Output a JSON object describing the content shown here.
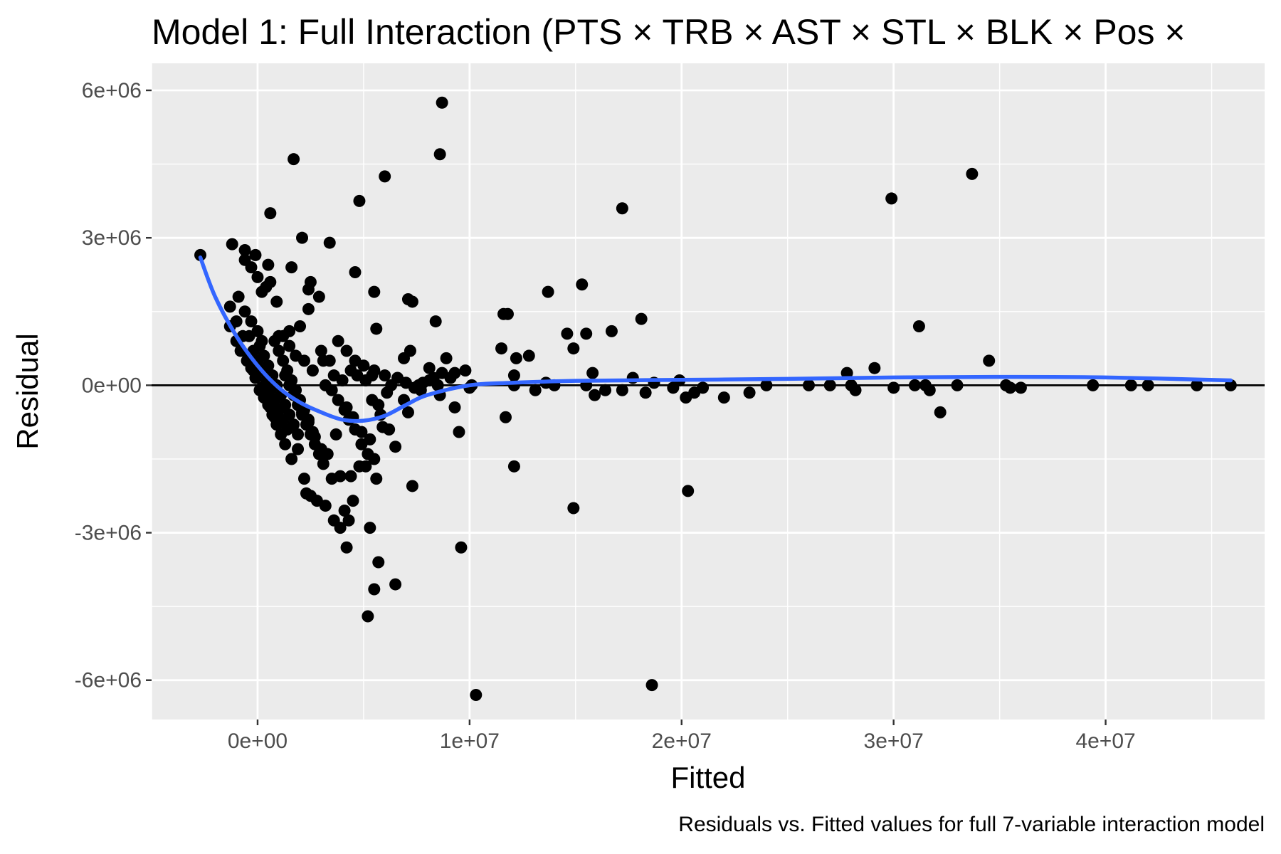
{
  "chart_data": {
    "type": "scatter",
    "title": "Model 1: Full Interaction (PTS × TRB × AST × STL × BLK × Pos × ",
    "caption": "Residuals vs. Fitted values for full 7-variable interaction model",
    "xlabel": "Fitted",
    "ylabel": "Residual",
    "xlim": [
      -5000000,
      47500000
    ],
    "ylim": [
      -6800000,
      6550000
    ],
    "x_ticks": [
      0,
      10000000,
      20000000,
      30000000,
      40000000
    ],
    "x_tick_labels": [
      "0e+00",
      "1e+07",
      "2e+07",
      "3e+07",
      "4e+07"
    ],
    "y_ticks": [
      -6000000,
      -3000000,
      0,
      3000000,
      6000000
    ],
    "y_tick_labels": [
      "-6e+06",
      "-3e+06",
      "0e+00",
      "3e+06",
      "6e+06"
    ],
    "grid": true,
    "reference_line_y": 0,
    "colors": {
      "panel": "#ebebeb",
      "grid": "#ffffff",
      "points": "#000000",
      "smooth": "#3366ff",
      "reference": "#000000"
    },
    "points": [
      [
        -2700000,
        2650000
      ],
      [
        -1200000,
        2870000
      ],
      [
        -600000,
        2750000
      ],
      [
        -100000,
        2650000
      ],
      [
        500000,
        2450000
      ],
      [
        1600000,
        2400000
      ],
      [
        2100000,
        3000000
      ],
      [
        3400000,
        2900000
      ],
      [
        2400000,
        1950000
      ],
      [
        2400000,
        1550000
      ],
      [
        2900000,
        1800000
      ],
      [
        2500000,
        2100000
      ],
      [
        600000,
        3500000
      ],
      [
        1700000,
        4600000
      ],
      [
        4800000,
        3750000
      ],
      [
        6000000,
        4250000
      ],
      [
        8600000,
        4700000
      ],
      [
        8700000,
        5750000
      ],
      [
        17200000,
        3600000
      ],
      [
        29900000,
        3800000
      ],
      [
        33700000,
        4300000
      ],
      [
        4600000,
        2300000
      ],
      [
        5500000,
        1900000
      ],
      [
        5600000,
        1150000
      ],
      [
        7100000,
        1750000
      ],
      [
        7300000,
        1700000
      ],
      [
        8400000,
        1300000
      ],
      [
        13700000,
        1900000
      ],
      [
        15300000,
        2050000
      ],
      [
        11600000,
        1450000
      ],
      [
        11800000,
        1450000
      ],
      [
        16700000,
        1100000
      ],
      [
        18100000,
        1350000
      ],
      [
        14600000,
        1050000
      ],
      [
        15500000,
        1050000
      ],
      [
        31200000,
        1200000
      ],
      [
        11500000,
        750000
      ],
      [
        12200000,
        550000
      ],
      [
        12800000,
        600000
      ],
      [
        14900000,
        750000
      ],
      [
        34500000,
        500000
      ],
      [
        29100000,
        350000
      ],
      [
        27800000,
        250000
      ],
      [
        15800000,
        250000
      ],
      [
        12100000,
        200000
      ],
      [
        12100000,
        0
      ],
      [
        13100000,
        -100000
      ],
      [
        13600000,
        50000
      ],
      [
        14000000,
        0
      ],
      [
        15500000,
        0
      ],
      [
        15900000,
        -200000
      ],
      [
        16400000,
        -100000
      ],
      [
        17200000,
        -100000
      ],
      [
        17700000,
        150000
      ],
      [
        18300000,
        -150000
      ],
      [
        18700000,
        50000
      ],
      [
        19600000,
        -50000
      ],
      [
        19900000,
        100000
      ],
      [
        20200000,
        -250000
      ],
      [
        20600000,
        -150000
      ],
      [
        21000000,
        -50000
      ],
      [
        22000000,
        -250000
      ],
      [
        23200000,
        -150000
      ],
      [
        24000000,
        0
      ],
      [
        26000000,
        0
      ],
      [
        27000000,
        0
      ],
      [
        28000000,
        0
      ],
      [
        28200000,
        -100000
      ],
      [
        30000000,
        -50000
      ],
      [
        31000000,
        0
      ],
      [
        31500000,
        0
      ],
      [
        31700000,
        -100000
      ],
      [
        32200000,
        -550000
      ],
      [
        33000000,
        0
      ],
      [
        35300000,
        0
      ],
      [
        35500000,
        -50000
      ],
      [
        36000000,
        -50000
      ],
      [
        39400000,
        0
      ],
      [
        41200000,
        0
      ],
      [
        42000000,
        0
      ],
      [
        44300000,
        0
      ],
      [
        45900000,
        0
      ],
      [
        11700000,
        -650000
      ],
      [
        12100000,
        -1650000
      ],
      [
        14900000,
        -2500000
      ],
      [
        20300000,
        -2150000
      ],
      [
        18600000,
        -6100000
      ],
      [
        10300000,
        -6300000
      ],
      [
        9600000,
        -3300000
      ],
      [
        9500000,
        -950000
      ],
      [
        9300000,
        -450000
      ],
      [
        7300000,
        -2050000
      ],
      [
        6500000,
        -1250000
      ],
      [
        6500000,
        -4050000
      ],
      [
        5500000,
        -4150000
      ],
      [
        5200000,
        -4700000
      ],
      [
        5700000,
        -3600000
      ],
      [
        5300000,
        -2900000
      ],
      [
        4200000,
        -3300000
      ],
      [
        3900000,
        -2900000
      ],
      [
        4300000,
        -2750000
      ],
      [
        4500000,
        -2350000
      ],
      [
        4100000,
        -2550000
      ],
      [
        3600000,
        -2750000
      ],
      [
        3200000,
        -2450000
      ],
      [
        2800000,
        -2350000
      ],
      [
        2500000,
        -2250000
      ],
      [
        2300000,
        -2200000
      ],
      [
        2200000,
        -1900000
      ],
      [
        3500000,
        -1900000
      ],
      [
        3900000,
        -1850000
      ],
      [
        4400000,
        -1850000
      ],
      [
        4800000,
        -1650000
      ],
      [
        5100000,
        -1650000
      ],
      [
        5600000,
        -1900000
      ],
      [
        5500000,
        -1500000
      ],
      [
        5900000,
        -850000
      ],
      [
        5700000,
        -400000
      ],
      [
        6100000,
        -150000
      ],
      [
        5300000,
        -1100000
      ],
      [
        4900000,
        -950000
      ],
      [
        4500000,
        -650000
      ],
      [
        4200000,
        -450000
      ],
      [
        3700000,
        -1000000
      ],
      [
        3300000,
        -1400000
      ],
      [
        3000000,
        -1300000
      ],
      [
        2700000,
        -1050000
      ],
      [
        2400000,
        -700000
      ],
      [
        2100000,
        -550000
      ],
      [
        1900000,
        -1300000
      ],
      [
        1600000,
        -1500000
      ],
      [
        1300000,
        -1200000
      ],
      [
        1100000,
        -1000000
      ],
      [
        900000,
        -800000
      ],
      [
        700000,
        -600000
      ],
      [
        500000,
        -400000
      ],
      [
        300000,
        -250000
      ],
      [
        100000,
        -100000
      ],
      [
        -200000,
        300000
      ],
      [
        -400000,
        600000
      ],
      [
        -700000,
        1000000
      ],
      [
        -1000000,
        1300000
      ],
      [
        -1300000,
        1600000
      ],
      [
        -900000,
        1800000
      ],
      [
        -600000,
        2550000
      ],
      [
        -300000,
        2400000
      ],
      [
        0,
        2200000
      ],
      [
        200000,
        1900000
      ],
      [
        400000,
        2000000
      ],
      [
        600000,
        2100000
      ],
      [
        900000,
        1700000
      ],
      [
        1200000,
        1000000
      ],
      [
        1500000,
        800000
      ],
      [
        1800000,
        600000
      ],
      [
        2200000,
        500000
      ],
      [
        2600000,
        300000
      ],
      [
        3100000,
        500000
      ],
      [
        3600000,
        200000
      ],
      [
        4000000,
        100000
      ],
      [
        4400000,
        300000
      ],
      [
        4700000,
        200000
      ],
      [
        5100000,
        100000
      ],
      [
        5500000,
        300000
      ],
      [
        6000000,
        200000
      ],
      [
        6300000,
        0
      ],
      [
        6900000,
        550000
      ],
      [
        7200000,
        700000
      ],
      [
        7600000,
        0
      ],
      [
        8100000,
        350000
      ],
      [
        8500000,
        0
      ],
      [
        8900000,
        550000
      ],
      [
        9300000,
        250000
      ],
      [
        9800000,
        300000
      ],
      [
        10100000,
        0
      ],
      [
        10000000,
        -50000
      ],
      [
        8600000,
        -200000
      ],
      [
        8100000,
        100000
      ],
      [
        7700000,
        -100000
      ],
      [
        7100000,
        -550000
      ],
      [
        6900000,
        -300000
      ],
      [
        -400000,
        1000000
      ],
      [
        -200000,
        700000
      ],
      [
        0,
        500000
      ],
      [
        200000,
        300000
      ],
      [
        400000,
        100000
      ],
      [
        600000,
        -100000
      ],
      [
        800000,
        -300000
      ],
      [
        1000000,
        -500000
      ],
      [
        1200000,
        -700000
      ],
      [
        1400000,
        -900000
      ],
      [
        100000,
        800000
      ],
      [
        300000,
        600000
      ],
      [
        500000,
        400000
      ],
      [
        700000,
        200000
      ],
      [
        900000,
        0
      ],
      [
        1100000,
        -200000
      ],
      [
        1300000,
        -400000
      ],
      [
        1500000,
        -600000
      ],
      [
        1700000,
        -800000
      ],
      [
        1900000,
        -1000000
      ],
      [
        800000,
        900000
      ],
      [
        1000000,
        700000
      ],
      [
        1200000,
        500000
      ],
      [
        1400000,
        300000
      ],
      [
        1600000,
        100000
      ],
      [
        1800000,
        -100000
      ],
      [
        2000000,
        -300000
      ],
      [
        2200000,
        -500000
      ],
      [
        2400000,
        -750000
      ],
      [
        2600000,
        -950000
      ],
      [
        1300000,
        200000
      ],
      [
        1500000,
        0
      ],
      [
        1700000,
        -200000
      ],
      [
        1900000,
        -400000
      ],
      [
        2100000,
        -600000
      ],
      [
        2300000,
        -800000
      ],
      [
        2500000,
        -1000000
      ],
      [
        2700000,
        -1200000
      ],
      [
        2900000,
        -1400000
      ],
      [
        3100000,
        -1600000
      ],
      [
        3200000,
        0
      ],
      [
        3500000,
        -100000
      ],
      [
        3800000,
        -300000
      ],
      [
        4100000,
        -500000
      ],
      [
        4300000,
        -700000
      ],
      [
        4600000,
        -900000
      ],
      [
        4900000,
        -1200000
      ],
      [
        5200000,
        -1400000
      ],
      [
        5400000,
        -300000
      ],
      [
        5800000,
        -600000
      ],
      [
        6200000,
        -900000
      ],
      [
        6600000,
        150000
      ],
      [
        7000000,
        50000
      ],
      [
        7400000,
        -50000
      ],
      [
        7800000,
        50000
      ],
      [
        8300000,
        150000
      ],
      [
        8700000,
        250000
      ],
      [
        9100000,
        150000
      ],
      [
        3000000,
        700000
      ],
      [
        3400000,
        500000
      ],
      [
        3800000,
        900000
      ],
      [
        4200000,
        700000
      ],
      [
        4600000,
        500000
      ],
      [
        5000000,
        400000
      ],
      [
        5400000,
        200000
      ],
      [
        -1300000,
        1200000
      ],
      [
        -1000000,
        900000
      ],
      [
        -800000,
        700000
      ],
      [
        -500000,
        500000
      ],
      [
        -300000,
        350000
      ],
      [
        -100000,
        150000
      ],
      [
        200000,
        -50000
      ],
      [
        400000,
        -250000
      ],
      [
        600000,
        -450000
      ],
      [
        800000,
        -650000
      ],
      [
        -600000,
        1500000
      ],
      [
        -300000,
        1300000
      ],
      [
        0,
        1100000
      ],
      [
        200000,
        900000
      ],
      [
        1000000,
        1000000
      ],
      [
        1500000,
        1100000
      ],
      [
        2000000,
        1200000
      ]
    ],
    "smooth": [
      [
        -2700000,
        2600000
      ],
      [
        -2000000,
        1800000
      ],
      [
        -1000000,
        1000000
      ],
      [
        0,
        400000
      ],
      [
        1000000,
        -50000
      ],
      [
        2000000,
        -350000
      ],
      [
        3000000,
        -550000
      ],
      [
        4000000,
        -700000
      ],
      [
        5000000,
        -720000
      ],
      [
        6000000,
        -620000
      ],
      [
        7000000,
        -400000
      ],
      [
        8000000,
        -200000
      ],
      [
        10000000,
        0
      ],
      [
        12000000,
        50000
      ],
      [
        15000000,
        90000
      ],
      [
        20000000,
        110000
      ],
      [
        25000000,
        130000
      ],
      [
        30000000,
        160000
      ],
      [
        35000000,
        170000
      ],
      [
        40000000,
        160000
      ],
      [
        45900000,
        100000
      ]
    ]
  }
}
